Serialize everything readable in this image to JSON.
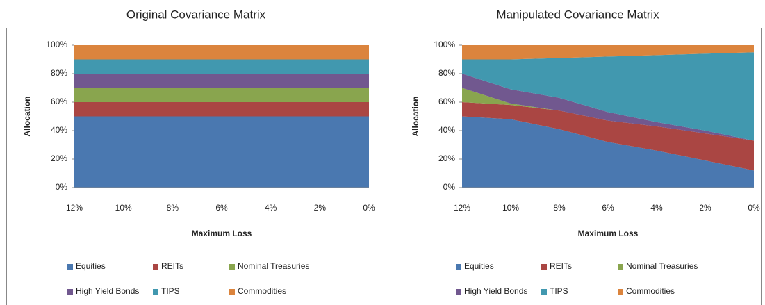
{
  "chart_data": [
    {
      "type": "area",
      "stacked": true,
      "title": "Original Covariance Matrix",
      "x_label": "Maximum Loss",
      "y_label": "Allocation",
      "categories": [
        "12%",
        "10%",
        "8%",
        "6%",
        "4%",
        "2%",
        "0%"
      ],
      "ylim": [
        0,
        100
      ],
      "yticks": [
        {
          "value": 0,
          "label": "0%"
        },
        {
          "value": 20,
          "label": "20%"
        },
        {
          "value": 40,
          "label": "40%"
        },
        {
          "value": 60,
          "label": "60%"
        },
        {
          "value": 80,
          "label": "80%"
        },
        {
          "value": 100,
          "label": "100%"
        }
      ],
      "series": [
        {
          "name": "Equities",
          "color": "#4a78b0",
          "values": [
            50,
            50,
            50,
            50,
            50,
            50,
            50
          ]
        },
        {
          "name": "REITs",
          "color": "#aa4643",
          "values": [
            10,
            10,
            10,
            10,
            10,
            10,
            10
          ]
        },
        {
          "name": "Nominal Treasuries",
          "color": "#89a54e",
          "values": [
            10,
            10,
            10,
            10,
            10,
            10,
            10
          ]
        },
        {
          "name": "High Yield Bonds",
          "color": "#71588f",
          "values": [
            10,
            10,
            10,
            10,
            10,
            10,
            10
          ]
        },
        {
          "name": "TIPS",
          "color": "#4198af",
          "values": [
            10,
            10,
            10,
            10,
            10,
            10,
            10
          ]
        },
        {
          "name": "Commodities",
          "color": "#db843d",
          "values": [
            10,
            10,
            10,
            10,
            10,
            10,
            10
          ]
        }
      ]
    },
    {
      "type": "area",
      "stacked": true,
      "title": "Manipulated Covariance Matrix",
      "x_label": "Maximum Loss",
      "y_label": "Allocation",
      "categories": [
        "12%",
        "10%",
        "8%",
        "6%",
        "4%",
        "2%",
        "0%"
      ],
      "ylim": [
        0,
        100
      ],
      "yticks": [
        {
          "value": 0,
          "label": "0%"
        },
        {
          "value": 20,
          "label": "20%"
        },
        {
          "value": 40,
          "label": "40%"
        },
        {
          "value": 60,
          "label": "60%"
        },
        {
          "value": 80,
          "label": "80%"
        },
        {
          "value": 100,
          "label": "100%"
        }
      ],
      "series": [
        {
          "name": "Equities",
          "color": "#4a78b0",
          "values": [
            50,
            48,
            41,
            32,
            26,
            19,
            12
          ]
        },
        {
          "name": "REITs",
          "color": "#aa4643",
          "values": [
            10,
            10,
            13,
            15,
            17,
            19,
            21
          ]
        },
        {
          "name": "Nominal Treasuries",
          "color": "#89a54e",
          "values": [
            10,
            1,
            0,
            0,
            0,
            0,
            0
          ]
        },
        {
          "name": "High Yield Bonds",
          "color": "#71588f",
          "values": [
            10,
            10,
            9,
            6,
            3,
            2,
            0
          ]
        },
        {
          "name": "TIPS",
          "color": "#4198af",
          "values": [
            10,
            21,
            28,
            39,
            47,
            54,
            62
          ]
        },
        {
          "name": "Commodities",
          "color": "#db843d",
          "values": [
            10,
            10,
            9,
            8,
            7,
            6,
            5
          ]
        }
      ]
    }
  ]
}
